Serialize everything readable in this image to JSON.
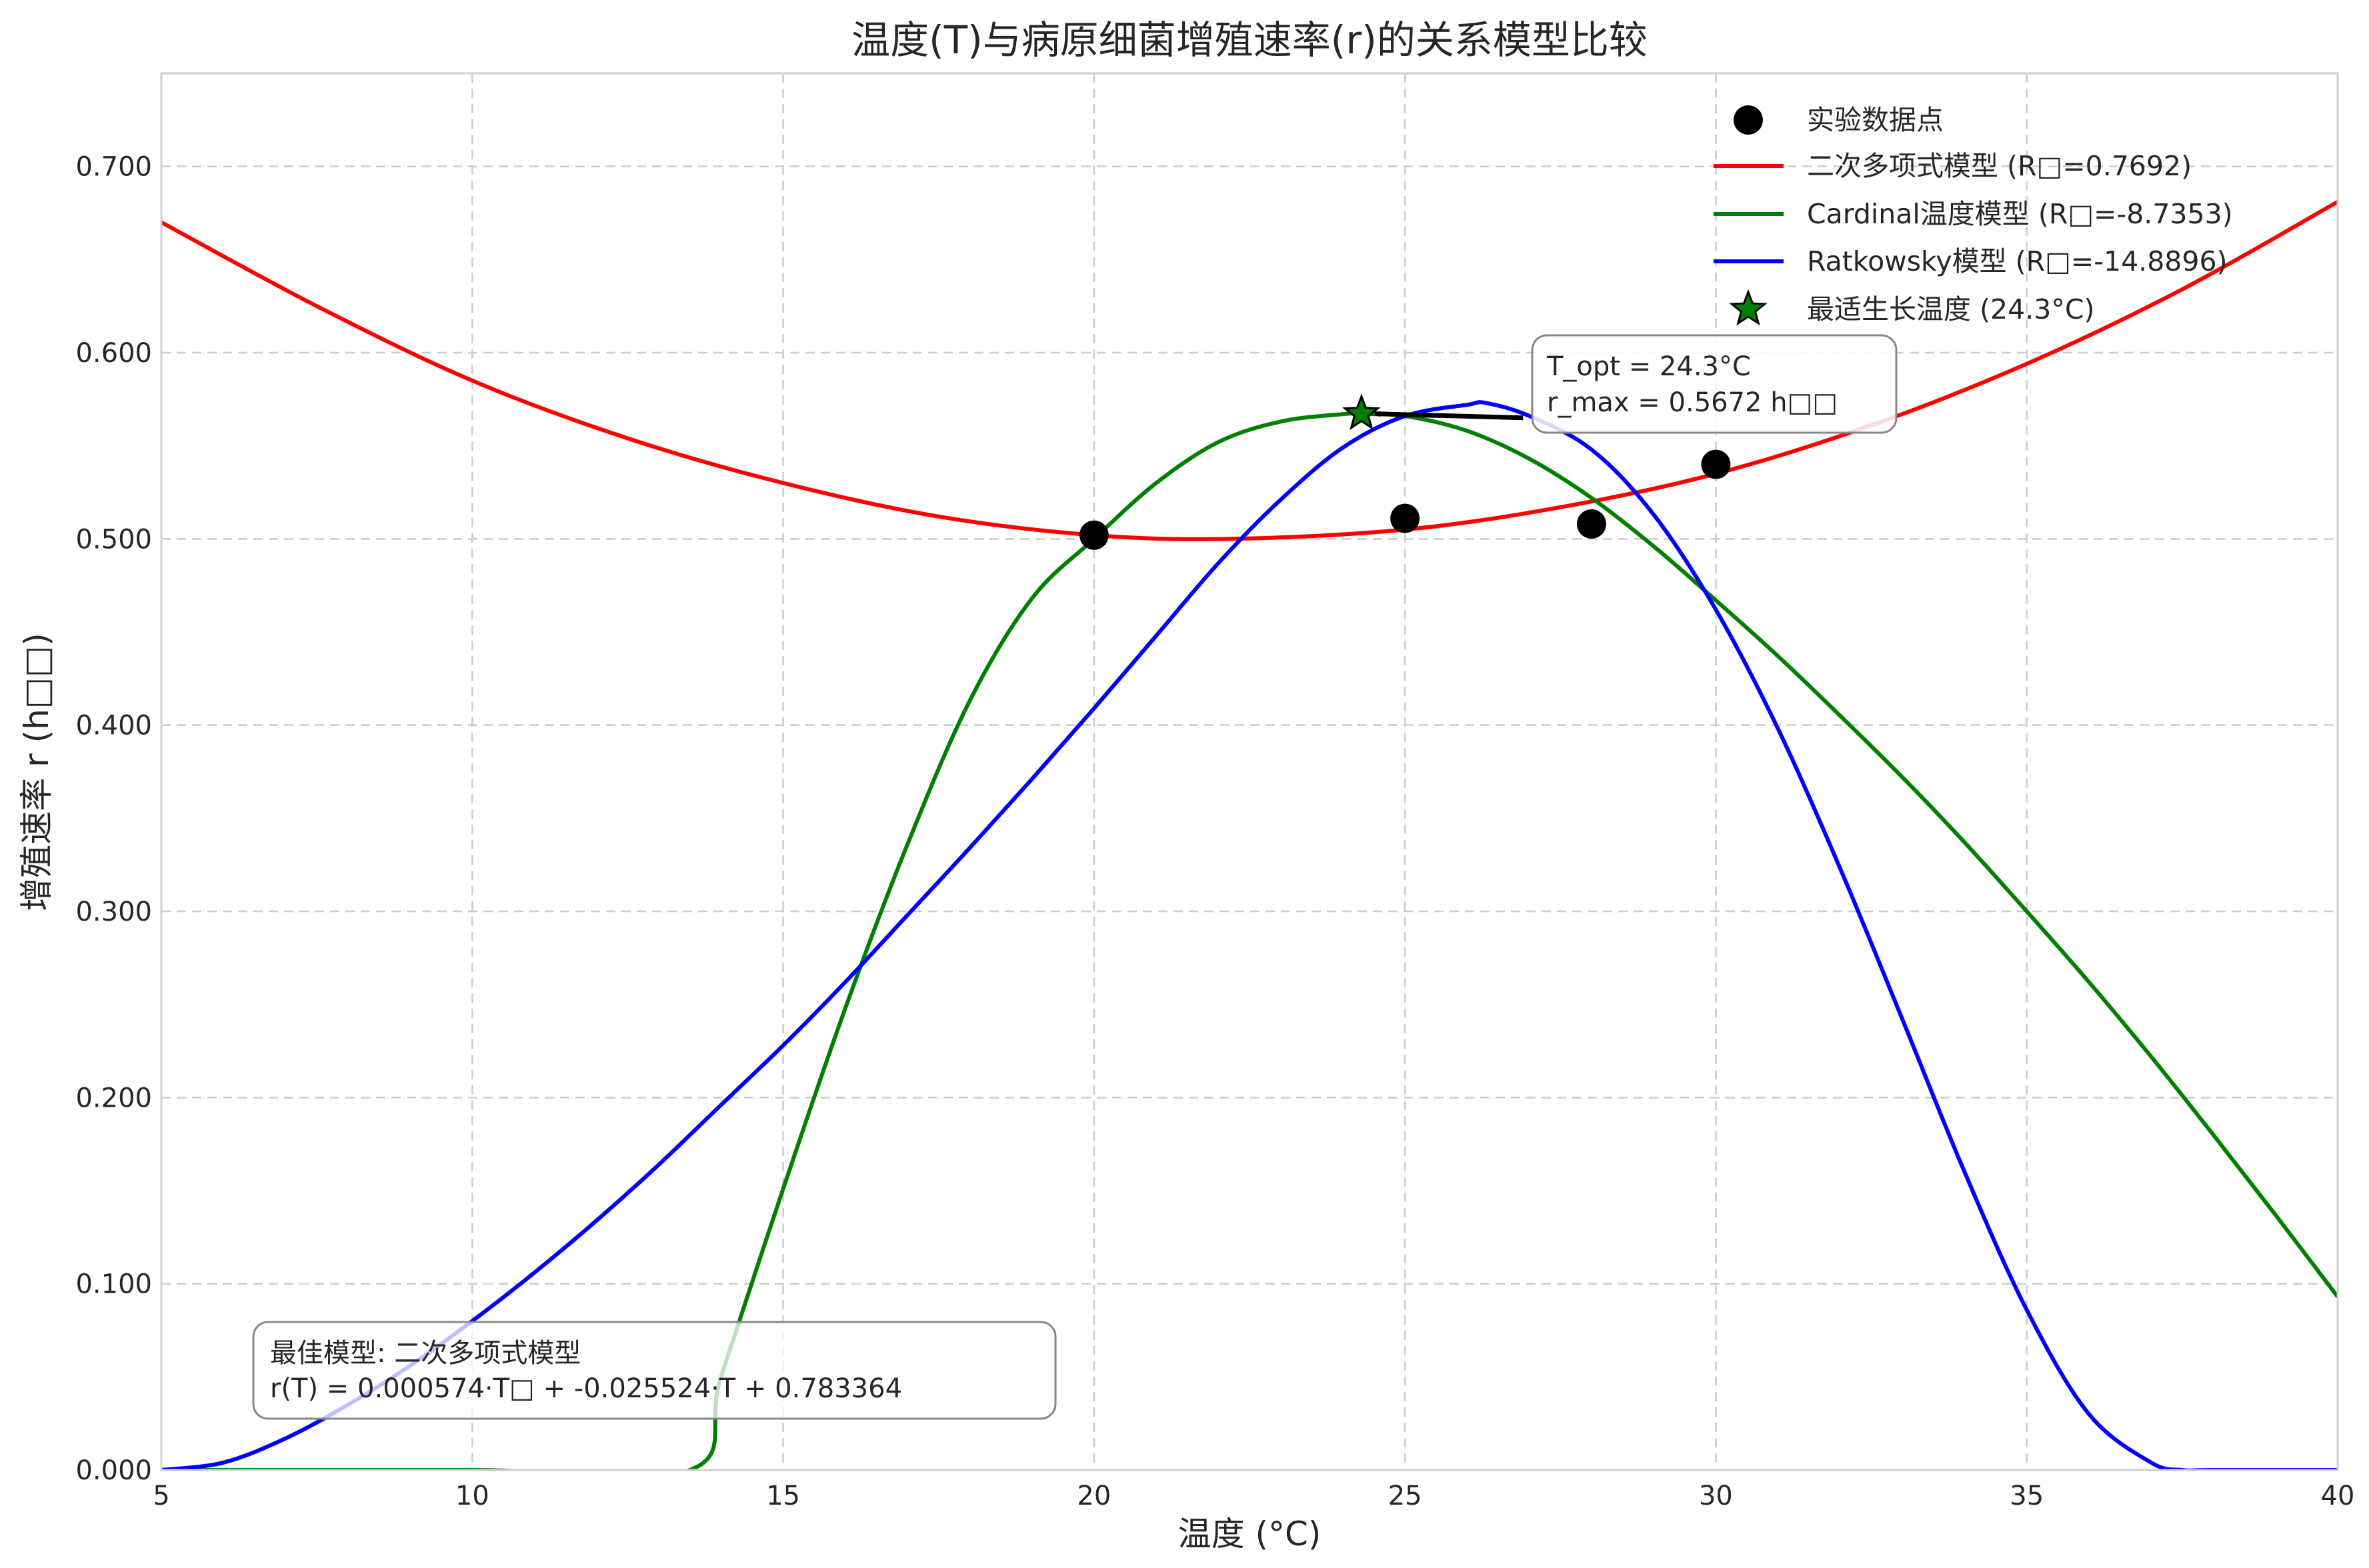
{
  "chart_data": {
    "type": "line",
    "title": "温度(T)与病原细菌增殖速率(r)的关系模型比较",
    "xlabel": "温度 (°C)",
    "ylabel": "增殖速率 r (h□□)",
    "xlim": [
      5,
      40
    ],
    "ylim": [
      0,
      0.75
    ],
    "x_ticks": [
      5,
      10,
      15,
      20,
      25,
      30,
      35,
      40
    ],
    "x_tick_labels": [
      "5",
      "10",
      "15",
      "20",
      "25",
      "30",
      "35",
      "40"
    ],
    "y_ticks": [
      0,
      0.1,
      0.2,
      0.3,
      0.4,
      0.5,
      0.6,
      0.7
    ],
    "y_tick_labels": [
      "0.000",
      "0.100",
      "0.200",
      "0.300",
      "0.400",
      "0.500",
      "0.600",
      "0.700"
    ],
    "grid": true,
    "legend_position": "top-right",
    "scatter": {
      "name": "实验数据点",
      "color": "#000000",
      "points": [
        {
          "x": 20,
          "y": 0.502
        },
        {
          "x": 25,
          "y": 0.511
        },
        {
          "x": 28,
          "y": 0.508
        },
        {
          "x": 30,
          "y": 0.54
        }
      ]
    },
    "series": [
      {
        "name": "二次多项式模型 (R□=0.7692)",
        "color": "#ff0000",
        "x": [
          5,
          7.5,
          10,
          12.5,
          15,
          17.5,
          20,
          22.2,
          25,
          27.5,
          30,
          32.5,
          35,
          37.5,
          40
        ],
        "y": [
          0.67,
          0.625,
          0.585,
          0.554,
          0.53,
          0.512,
          0.502,
          0.5,
          0.505,
          0.517,
          0.535,
          0.561,
          0.594,
          0.634,
          0.681
        ]
      },
      {
        "name": "Cardinal温度模型 (R□=-8.7353)",
        "color": "#008000",
        "x": [
          5,
          10,
          13.5,
          14,
          15,
          16,
          17,
          18,
          19,
          20,
          21,
          22,
          23,
          24,
          24.3,
          25,
          26,
          27,
          28,
          29,
          30,
          31,
          32,
          33,
          34,
          35,
          36,
          37,
          38,
          39,
          40
        ],
        "y": [
          0,
          0,
          0,
          0.05,
          0.151,
          0.248,
          0.336,
          0.413,
          0.468,
          0.5,
          0.53,
          0.552,
          0.563,
          0.567,
          0.567,
          0.566,
          0.558,
          0.543,
          0.522,
          0.496,
          0.467,
          0.437,
          0.405,
          0.372,
          0.337,
          0.3,
          0.262,
          0.222,
          0.18,
          0.137,
          0.093
        ]
      },
      {
        "name": "Ratkowsky模型 (R□=-14.8896)",
        "color": "#0000ff",
        "x": [
          5,
          6,
          7,
          8,
          9,
          10,
          11,
          12,
          13,
          14,
          15,
          16,
          17,
          18,
          19,
          20,
          21,
          22,
          23,
          24,
          25,
          26,
          26.3,
          27,
          28,
          29,
          30,
          31,
          32,
          33,
          34,
          35,
          36,
          37,
          37.5,
          38,
          40
        ],
        "y": [
          0,
          0.004,
          0.017,
          0.035,
          0.056,
          0.08,
          0.106,
          0.134,
          0.164,
          0.196,
          0.228,
          0.262,
          0.298,
          0.334,
          0.371,
          0.409,
          0.448,
          0.487,
          0.521,
          0.549,
          0.566,
          0.572,
          0.573,
          0.566,
          0.548,
          0.513,
          0.462,
          0.398,
          0.323,
          0.242,
          0.16,
          0.086,
          0.03,
          0.004,
          0,
          0,
          0
        ]
      }
    ],
    "optimum": {
      "name": "最适生长温度 (24.3°C)",
      "x": 24.3,
      "y": 0.5672,
      "color": "#008000"
    },
    "annotations": {
      "optimum_lines": [
        "T_opt = 24.3°C",
        "r_max = 0.5672 h□□"
      ],
      "best_model_lines": [
        "最佳模型: 二次多项式模型",
        "r(T) = 0.000574·T□ + -0.025524·T + 0.783364"
      ]
    }
  }
}
